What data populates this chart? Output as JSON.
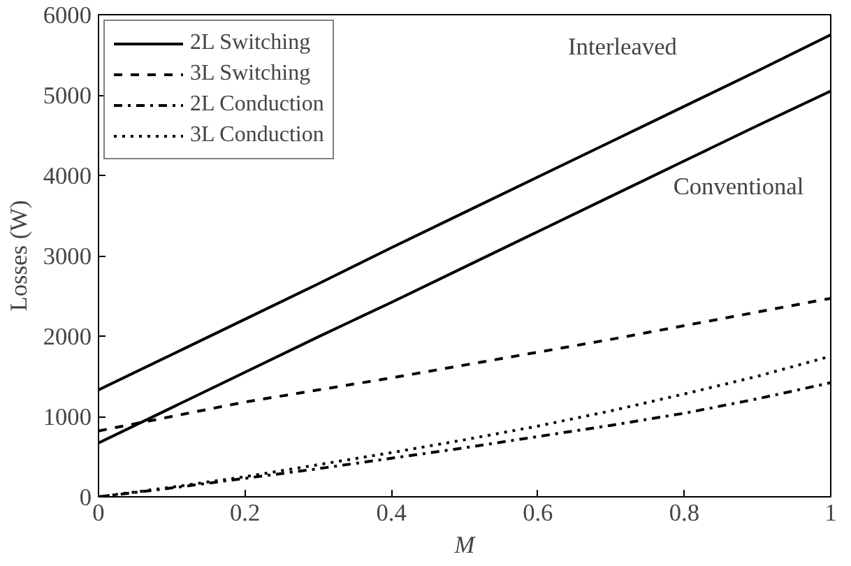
{
  "chart_data": {
    "type": "line",
    "xlabel": "M",
    "ylabel": "Losses (W)",
    "x": [
      0,
      0.1,
      0.2,
      0.3,
      0.4,
      0.5,
      0.6,
      0.7,
      0.8,
      0.9,
      1
    ],
    "xlim": [
      0,
      1
    ],
    "ylim": [
      0,
      6000
    ],
    "xticks": [
      0,
      0.2,
      0.4,
      0.6,
      0.8,
      1
    ],
    "yticks": [
      0,
      1000,
      2000,
      3000,
      4000,
      5000,
      6000
    ],
    "grid": false,
    "legend": "top left",
    "marker": "none",
    "series": [
      {
        "name": "2L Switching",
        "color": "#000000",
        "line_style": "solid",
        "values": [
          1330,
          1770,
          2210,
          2650,
          3100,
          3540,
          3980,
          4420,
          4860,
          5300,
          5750
        ]
      },
      {
        "color": "#000000",
        "line_style": "solid",
        "values": [
          670,
          1110,
          1550,
          1990,
          2420,
          2860,
          3300,
          3740,
          4180,
          4620,
          5050
        ]
      },
      {
        "name": "3L Switching",
        "color": "#000000",
        "line_style": "dashed",
        "values": [
          820,
          1000,
          1180,
          1330,
          1480,
          1640,
          1800,
          1960,
          2130,
          2300,
          2470
        ]
      },
      {
        "name": "2L Conduction",
        "color": "#000000",
        "line_style": "dashdot",
        "values": [
          0,
          110,
          230,
          350,
          480,
          610,
          750,
          890,
          1040,
          1220,
          1420
        ]
      },
      {
        "name": "3L Conduction",
        "color": "#000000",
        "line_style": "dotted",
        "values": [
          0,
          120,
          250,
          400,
          550,
          710,
          880,
          1070,
          1280,
          1500,
          1750
        ]
      }
    ],
    "annotations": [
      "Interleaved",
      "Conventional"
    ]
  }
}
